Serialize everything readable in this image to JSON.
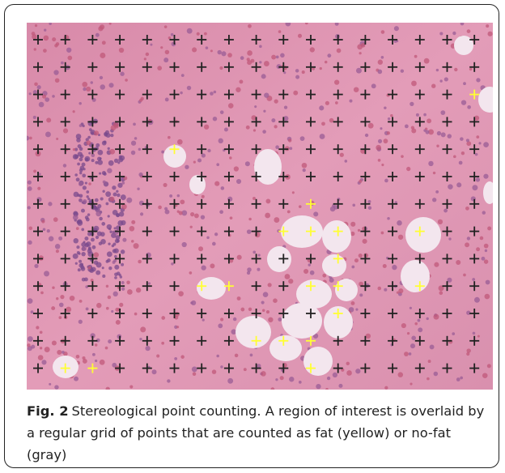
{
  "figure": {
    "caption": {
      "label": "Fig. 2",
      "text": "Stereological point counting. A region of interest is overlaid by a regular grid of points that are counted as fat (yellow) or no-fat (gray)"
    }
  }
}
